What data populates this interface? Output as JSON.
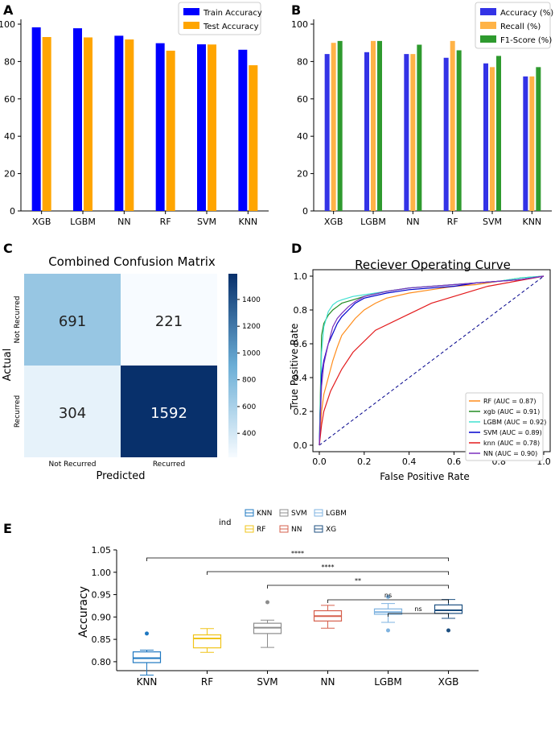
{
  "colors": {
    "train": "#0000ff",
    "test": "#ffa500",
    "accuracy": "#3333e6",
    "recall": "#ffb347",
    "f1": "#2e9a2e",
    "roc_diag": "#00008b"
  },
  "chart_data": [
    {
      "panel": "A",
      "type": "bar",
      "title": "",
      "xlabel": "",
      "ylabel": "",
      "ylim": [
        0,
        100
      ],
      "yticks": [
        0,
        20,
        40,
        60,
        80,
        100
      ],
      "categories": [
        "XGB",
        "LGBM",
        "NN",
        "RF",
        "SVM",
        "KNN"
      ],
      "series": [
        {
          "name": "Train Accuracy",
          "values": [
            98.3,
            97.8,
            93.8,
            89.8,
            89.2,
            86.3
          ]
        },
        {
          "name": "Test Accuracy",
          "values": [
            93.1,
            92.9,
            91.8,
            85.8,
            89.1,
            78.0
          ]
        }
      ],
      "legend_position": "top-right"
    },
    {
      "panel": "B",
      "type": "bar",
      "title": "",
      "xlabel": "",
      "ylabel": "",
      "ylim": [
        0,
        100
      ],
      "yticks": [
        0,
        20,
        40,
        60,
        80,
        100
      ],
      "categories": [
        "XGB",
        "LGBM",
        "NN",
        "RF",
        "SVM",
        "KNN"
      ],
      "series": [
        {
          "name": "Accuracy (%)",
          "values": [
            84.0,
            85.0,
            84.0,
            82.0,
            79.0,
            72.0
          ]
        },
        {
          "name": "Recall (%)",
          "values": [
            90.0,
            91.0,
            84.0,
            91.0,
            77.0,
            72.0
          ]
        },
        {
          "name": "F1-Score (%)",
          "values": [
            91.0,
            91.0,
            89.0,
            86.0,
            83.0,
            77.0
          ]
        }
      ],
      "legend_position": "top-right"
    },
    {
      "panel": "C",
      "type": "heatmap",
      "title": "Combined Confusion Matrix",
      "xlabel": "Predicted",
      "ylabel": "Actual",
      "x_labels": [
        "Not Recurred",
        "Recurred"
      ],
      "y_labels": [
        "Not Recurred",
        "Recurred"
      ],
      "values": [
        [
          691,
          221
        ],
        [
          304,
          1592
        ]
      ],
      "colorbar_ticks": [
        400,
        600,
        800,
        1000,
        1200,
        1400
      ],
      "colorbar_range": [
        221,
        1592
      ]
    },
    {
      "panel": "D",
      "type": "line",
      "title": "Reciever Operating Curve",
      "xlabel": "False Positive Rate",
      "ylabel": "True Positive Rate",
      "xlim": [
        0,
        1
      ],
      "ylim": [
        0,
        1
      ],
      "ticks": [
        0.0,
        0.2,
        0.4,
        0.6,
        0.8,
        1.0
      ],
      "legend_position": "bottom-right",
      "series": [
        {
          "name": "RF (AUC = 0.87)",
          "color": "#ff8c1a",
          "x": [
            0,
            0.01,
            0.02,
            0.04,
            0.06,
            0.08,
            0.1,
            0.13,
            0.16,
            0.2,
            0.25,
            0.3,
            0.4,
            0.5,
            0.6,
            0.7,
            0.8,
            0.9,
            1.0
          ],
          "y": [
            0,
            0.2,
            0.3,
            0.4,
            0.5,
            0.58,
            0.65,
            0.7,
            0.75,
            0.8,
            0.84,
            0.87,
            0.9,
            0.92,
            0.94,
            0.95,
            0.97,
            0.98,
            1.0
          ]
        },
        {
          "name": "xgb (AUC = 0.91)",
          "color": "#228b22",
          "x": [
            0,
            0.01,
            0.02,
            0.04,
            0.06,
            0.08,
            0.1,
            0.15,
            0.2,
            0.3,
            0.4,
            0.5,
            0.6,
            0.7,
            0.8,
            0.9,
            1.0
          ],
          "y": [
            0,
            0.65,
            0.72,
            0.77,
            0.8,
            0.82,
            0.84,
            0.86,
            0.88,
            0.91,
            0.93,
            0.94,
            0.95,
            0.96,
            0.97,
            0.99,
            1.0
          ]
        },
        {
          "name": "LGBM (AUC = 0.92)",
          "color": "#40e0d0",
          "x": [
            0,
            0.01,
            0.02,
            0.04,
            0.06,
            0.08,
            0.1,
            0.15,
            0.2,
            0.3,
            0.4,
            0.5,
            0.6,
            0.7,
            0.8,
            0.9,
            1.0
          ],
          "y": [
            0,
            0.55,
            0.7,
            0.79,
            0.83,
            0.85,
            0.86,
            0.88,
            0.89,
            0.91,
            0.93,
            0.94,
            0.95,
            0.96,
            0.97,
            0.99,
            1.0
          ]
        },
        {
          "name": "SVM (AUC = 0.89)",
          "color": "#0000cd",
          "x": [
            0,
            0.01,
            0.02,
            0.04,
            0.06,
            0.08,
            0.1,
            0.13,
            0.16,
            0.2,
            0.3,
            0.4,
            0.5,
            0.6,
            0.7,
            0.8,
            0.9,
            1.0
          ],
          "y": [
            0,
            0.42,
            0.5,
            0.6,
            0.66,
            0.72,
            0.76,
            0.8,
            0.84,
            0.87,
            0.9,
            0.92,
            0.93,
            0.94,
            0.96,
            0.97,
            0.98,
            1.0
          ]
        },
        {
          "name": "knn (AUC = 0.78)",
          "color": "#e31a1c",
          "x": [
            0,
            0.01,
            0.02,
            0.05,
            0.1,
            0.15,
            0.25,
            0.5,
            0.75,
            1.0
          ],
          "y": [
            0,
            0.12,
            0.2,
            0.32,
            0.45,
            0.55,
            0.68,
            0.84,
            0.94,
            1.0
          ]
        },
        {
          "name": "NN (AUC = 0.90)",
          "color": "#7b2fbe",
          "x": [
            0,
            0.01,
            0.02,
            0.04,
            0.06,
            0.08,
            0.1,
            0.13,
            0.16,
            0.2,
            0.3,
            0.4,
            0.5,
            0.6,
            0.7,
            0.8,
            0.9,
            1.0
          ],
          "y": [
            0,
            0.35,
            0.48,
            0.6,
            0.7,
            0.75,
            0.78,
            0.82,
            0.85,
            0.88,
            0.91,
            0.93,
            0.94,
            0.95,
            0.96,
            0.97,
            0.98,
            1.0
          ]
        }
      ],
      "diagonal": true
    },
    {
      "panel": "E",
      "type": "box",
      "title": "",
      "xlabel": "",
      "ylabel": "Accuracy",
      "ylim": [
        0.78,
        1.05
      ],
      "yticks": [
        0.8,
        0.85,
        0.9,
        0.95,
        1.0,
        1.05
      ],
      "legend_title": "ind",
      "legend_position": "top-center",
      "categories": [
        "KNN",
        "RF",
        "SVM",
        "NN",
        "LGBM",
        "XGB"
      ],
      "legend_order": [
        "KNN",
        "SVM",
        "LGBM",
        "RF",
        "NN",
        "XG"
      ],
      "boxes": [
        {
          "name": "KNN",
          "color": "#1f78c1",
          "whisker_low": 0.77,
          "q1": 0.798,
          "median": 0.808,
          "q3": 0.822,
          "whisker_high": 0.826,
          "outliers": [
            0.863
          ]
        },
        {
          "name": "RF",
          "color": "#f0c419",
          "whisker_low": 0.821,
          "q1": 0.831,
          "median": 0.852,
          "q3": 0.86,
          "whisker_high": 0.874,
          "outliers": []
        },
        {
          "name": "SVM",
          "color": "#8c8c8c",
          "whisker_low": 0.832,
          "q1": 0.863,
          "median": 0.876,
          "q3": 0.886,
          "whisker_high": 0.893,
          "outliers": [
            0.933
          ]
        },
        {
          "name": "NN",
          "color": "#d6604d",
          "whisker_low": 0.875,
          "q1": 0.891,
          "median": 0.902,
          "q3": 0.914,
          "whisker_high": 0.926,
          "outliers": []
        },
        {
          "name": "LGBM",
          "color": "#7fb3e0",
          "whisker_low": 0.888,
          "q1": 0.906,
          "median": 0.911,
          "q3": 0.918,
          "whisker_high": 0.93,
          "outliers": [
            0.945,
            0.87
          ]
        },
        {
          "name": "XGB",
          "color": "#1d4f80",
          "whisker_low": 0.897,
          "q1": 0.908,
          "median": 0.915,
          "q3": 0.927,
          "whisker_high": 0.939,
          "outliers": [
            0.87
          ]
        }
      ],
      "significance": [
        {
          "from": "KNN",
          "to": "XGB",
          "label": "****"
        },
        {
          "from": "RF",
          "to": "XGB",
          "label": "****"
        },
        {
          "from": "SVM",
          "to": "XGB",
          "label": "**"
        },
        {
          "from": "NN",
          "to": "XGB",
          "label": "ns"
        },
        {
          "from": "LGBM",
          "to": "XGB",
          "label": "ns"
        }
      ]
    }
  ],
  "panel_labels": [
    "A",
    "B",
    "C",
    "D",
    "E"
  ]
}
